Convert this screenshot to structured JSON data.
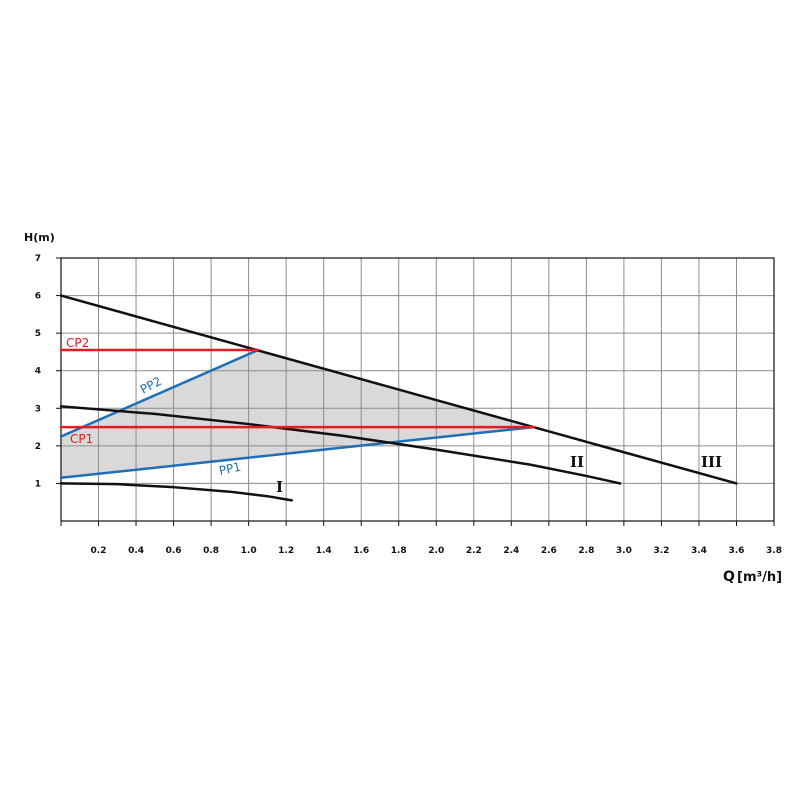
{
  "chart_data": {
    "type": "line",
    "title": "",
    "xlabel_main": "Q",
    "xlabel_unit": "[m³/h]",
    "ylabel": "H(m)",
    "xlim": [
      0,
      3.8
    ],
    "ylim": [
      0,
      7
    ],
    "xticks": [
      0.2,
      0.4,
      0.6,
      0.8,
      1.0,
      1.2,
      1.4,
      1.6,
      1.8,
      2.0,
      2.2,
      2.4,
      2.6,
      2.8,
      3.0,
      3.2,
      3.4,
      3.6,
      3.8
    ],
    "xtick_labels": [
      "0.2",
      "0.4",
      "0.6",
      "0.8",
      "1.0",
      "1.2",
      "1.4",
      "1.6",
      "1.8",
      "2.0",
      "2.2",
      "2.4",
      "2.6",
      "2.8",
      "3.0",
      "3.2",
      "3.4",
      "3.6",
      "3.8"
    ],
    "yticks": [
      1,
      2,
      3,
      4,
      5,
      6,
      7
    ],
    "ytick_labels": [
      "1",
      "2",
      "3",
      "4",
      "5",
      "6",
      "7"
    ],
    "grid": true,
    "control_region": {
      "color": "#d9d9d9",
      "points": [
        [
          0,
          1.15
        ],
        [
          0,
          2.25
        ],
        [
          1.05,
          4.55
        ],
        [
          2.52,
          2.5
        ]
      ]
    },
    "series": [
      {
        "name": "I",
        "color": "#111111",
        "x": [
          0,
          0.3,
          0.6,
          0.9,
          1.1,
          1.23
        ],
        "y": [
          1.0,
          0.98,
          0.9,
          0.78,
          0.66,
          0.55
        ]
      },
      {
        "name": "II",
        "color": "#111111",
        "x": [
          0,
          0.5,
          1.0,
          1.5,
          2.0,
          2.5,
          2.8,
          2.98
        ],
        "y": [
          3.05,
          2.85,
          2.58,
          2.27,
          1.9,
          1.5,
          1.2,
          1.0
        ]
      },
      {
        "name": "III",
        "color": "#111111",
        "x": [
          0,
          1.0,
          2.0,
          3.0,
          3.6
        ],
        "y": [
          6.0,
          4.61,
          3.22,
          1.83,
          1.0
        ]
      },
      {
        "name": "CP2",
        "color": "#e8191f",
        "x": [
          0,
          1.05
        ],
        "y": [
          4.55,
          4.55
        ]
      },
      {
        "name": "CP1",
        "color": "#e8191f",
        "x": [
          0,
          2.52
        ],
        "y": [
          2.5,
          2.5
        ]
      },
      {
        "name": "PP2",
        "color": "#1f6fb4",
        "x": [
          0,
          1.05
        ],
        "y": [
          2.25,
          4.55
        ]
      },
      {
        "name": "PP1",
        "color": "#1f6fb4",
        "x": [
          0,
          2.52
        ],
        "y": [
          1.15,
          2.5
        ]
      }
    ]
  }
}
